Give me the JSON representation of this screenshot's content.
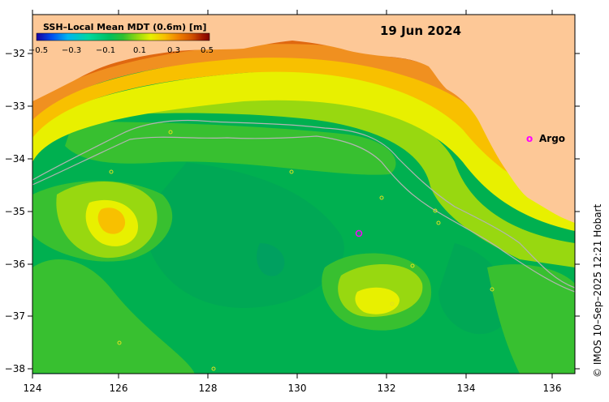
{
  "map": {
    "date": "19 Jun 2024",
    "colorbar": {
      "title": "SSH–Local Mean MDT (0.6m) [m]",
      "ticks": [
        "−0.5",
        "−0.3",
        "−0.1",
        "0.1",
        "0.3",
        "0.5"
      ],
      "colors": [
        "#1a00a0",
        "#0050f0",
        "#00b4f0",
        "#00d8a0",
        "#00c060",
        "#30c030",
        "#90d810",
        "#e8f000",
        "#f8c000",
        "#f08000",
        "#d05000",
        "#a01800",
        "#800000"
      ]
    },
    "x_ticks": [
      "124",
      "126",
      "128",
      "130",
      "132",
      "134",
      "136"
    ],
    "y_ticks": [
      "−32",
      "−33",
      "−34",
      "−35",
      "−36",
      "−37",
      "−38"
    ],
    "legend": {
      "marker": "o",
      "label": "Argo"
    },
    "credit": "© IMOS 10–Sep–2025 12:21 Hobart",
    "colors": {
      "land": "#fdc897",
      "ocean_base": "#00b050",
      "argo": "#ff00ff",
      "isobath": "#b4b4b4"
    }
  }
}
